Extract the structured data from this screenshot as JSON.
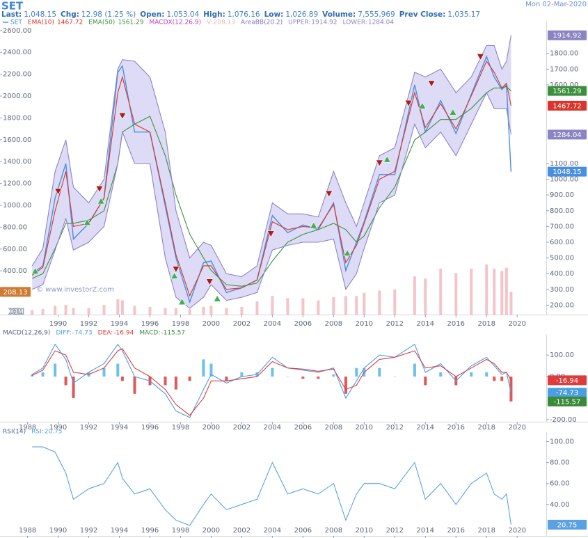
{
  "header": {
    "symbol": "SET",
    "date": "Mon 02-Mar-2020",
    "quote": [
      {
        "label": "Last:",
        "value": "1,048.15"
      },
      {
        "label": "Chg:",
        "value": "12.98 (1.25 %)"
      },
      {
        "label": "Open:",
        "value": "1,053.04"
      },
      {
        "label": "High:",
        "value": "1,076.16"
      },
      {
        "label": "Low:",
        "value": "1,026.89"
      },
      {
        "label": "Volume:",
        "value": "7,555,969"
      },
      {
        "label": "Prev Close:",
        "value": "1,035.17"
      }
    ]
  },
  "chart_data": [
    {
      "type": "line",
      "x": [
        1988.3,
        1989.0,
        1989.8,
        1990.5,
        1991.0,
        1992.0,
        1993.0,
        1993.9,
        1994.2,
        1995.0,
        1996.0,
        1997.0,
        1997.7,
        1998.6,
        1999.5,
        2000.0,
        2001.0,
        2002.0,
        2003.0,
        2004.0,
        2005.0,
        2006.0,
        2007.0,
        2008.0,
        2008.8,
        2009.5,
        2010.0,
        2011.0,
        2012.0,
        2013.3,
        2014.0,
        2015.0,
        2016.0,
        2017.0,
        2018.0,
        2018.5,
        2019.0,
        2019.3,
        2019.6
      ],
      "xlim": [
        1986.2,
        2021.9
      ],
      "xticks": [
        1990,
        1992,
        1994,
        1996,
        1998,
        2000,
        2002,
        2004,
        2006,
        2008,
        2010,
        2012,
        2014,
        2016,
        2018,
        2020
      ],
      "ylim": [
        140,
        1980
      ],
      "yticks": [
        {
          "value": 1800,
          "label": "1800.00"
        },
        {
          "value": 1700,
          "label": "1700.00"
        },
        {
          "value": 1600,
          "label": "1600.00"
        },
        {
          "value": 1100,
          "label": "1100.00"
        },
        {
          "value": 1000,
          "label": "1000.00"
        },
        {
          "value": 900,
          "label": "900.00"
        },
        {
          "value": 800,
          "label": "800.00"
        },
        {
          "value": 700,
          "label": "700.00"
        },
        {
          "value": 600,
          "label": "600.00"
        },
        {
          "value": 500,
          "label": "500.00"
        },
        {
          "value": 400,
          "label": "400.00"
        },
        {
          "value": 300,
          "label": "300.00"
        },
        {
          "value": 200,
          "label": "200.00"
        }
      ],
      "y2lim": [
        0,
        2650
      ],
      "y2ticks": [
        {
          "value": 2600,
          "label": "2600.00"
        },
        {
          "value": 2400,
          "label": "2400.00"
        },
        {
          "value": 2200,
          "label": "2200.00"
        },
        {
          "value": 2000,
          "label": "2000.00"
        },
        {
          "value": 1800,
          "label": "1800.00"
        },
        {
          "value": 1600,
          "label": "1600.00"
        },
        {
          "value": 1400,
          "label": "1400.00"
        },
        {
          "value": 1200,
          "label": "1200.00"
        },
        {
          "value": 1000,
          "label": "1000.00"
        },
        {
          "value": 800,
          "label": "800.00"
        },
        {
          "value": 600,
          "label": "600.00"
        },
        {
          "value": 400,
          "label": "400.00"
        }
      ],
      "y2_unit": "X1M",
      "watermark": "© www.investorZ.com",
      "indicator_labels": [
        {
          "text": "MACDX(12.26.9)",
          "color": "#c23bc2"
        },
        {
          "text": "AreaBB(20.2)",
          "color": "#7d74c4"
        }
      ],
      "series": [
        {
          "name": "SET",
          "color": "#4a8ee0",
          "values": [
            400,
            450,
            880,
            1100,
            620,
            720,
            880,
            1680,
            1720,
            1300,
            1300,
            830,
            500,
            220,
            470,
            480,
            280,
            310,
            360,
            770,
            660,
            710,
            680,
            850,
            420,
            600,
            730,
            1030,
            1030,
            1600,
            1300,
            1500,
            1290,
            1540,
            1780,
            1650,
            1570,
            1600,
            1048.15
          ]
        },
        {
          "name": "EMA(10)",
          "color": "#d8352c",
          "values": [
            390,
            440,
            800,
            1050,
            700,
            720,
            880,
            1550,
            1650,
            1350,
            1300,
            850,
            520,
            260,
            450,
            450,
            300,
            310,
            360,
            730,
            680,
            700,
            690,
            840,
            470,
            580,
            720,
            1000,
            1050,
            1550,
            1330,
            1480,
            1320,
            1530,
            1750,
            1680,
            1580,
            1610,
            1467.72
          ]
        },
        {
          "name": "EMA(50)",
          "color": "#3c8f3c",
          "values": [
            370,
            400,
            560,
            720,
            720,
            740,
            800,
            1100,
            1300,
            1350,
            1400,
            1150,
            900,
            650,
            500,
            420,
            330,
            320,
            340,
            480,
            600,
            650,
            680,
            720,
            680,
            600,
            640,
            820,
            950,
            1250,
            1300,
            1380,
            1380,
            1450,
            1550,
            1580,
            1580,
            1590,
            1561.29
          ]
        },
        {
          "name": "V:",
          "type": "bar",
          "axis": "y2",
          "color": "#f3c4c8",
          "label_color": "#cf7a30",
          "values": [
            40,
            50,
            80,
            90,
            60,
            60,
            90,
            140,
            130,
            80,
            70,
            60,
            60,
            50,
            70,
            80,
            60,
            70,
            120,
            170,
            150,
            150,
            130,
            160,
            170,
            170,
            200,
            220,
            230,
            350,
            330,
            420,
            380,
            420,
            460,
            420,
            400,
            430,
            208.13
          ]
        },
        {
          "name": "UPPER:",
          "color": "#8a84c4",
          "area_color": "#d2cff2",
          "values": [
            450,
            560,
            1050,
            1250,
            950,
            850,
            1000,
            1700,
            1760,
            1750,
            1650,
            1300,
            800,
            500,
            600,
            580,
            400,
            380,
            450,
            850,
            780,
            780,
            760,
            1050,
            850,
            700,
            850,
            1150,
            1200,
            1680,
            1650,
            1700,
            1550,
            1650,
            1850,
            1850,
            1700,
            1750,
            1914.92
          ]
        },
        {
          "name": "LOWER:",
          "color": "#8a84c4",
          "values": [
            300,
            330,
            550,
            750,
            550,
            600,
            700,
            1100,
            1300,
            1100,
            1100,
            500,
            250,
            180,
            250,
            330,
            230,
            250,
            280,
            550,
            580,
            600,
            600,
            620,
            300,
            400,
            560,
            850,
            900,
            1350,
            1200,
            1300,
            1150,
            1350,
            1550,
            1450,
            1450,
            1450,
            1284.04
          ]
        }
      ],
      "markers": {
        "sell": {
          "color": "#a8201c",
          "points": [
            {
              "x": 1990.0,
              "y": 920
            },
            {
              "x": 1992.7,
              "y": 935
            },
            {
              "x": 1994.2,
              "y": 1400
            },
            {
              "x": 1997.7,
              "y": 425
            },
            {
              "x": 1999.9,
              "y": 345
            },
            {
              "x": 2003.9,
              "y": 650
            },
            {
              "x": 2007.7,
              "y": 905
            },
            {
              "x": 2011.0,
              "y": 1100
            },
            {
              "x": 2012.9,
              "y": 1480
            },
            {
              "x": 2014.4,
              "y": 1605
            },
            {
              "x": 2017.6,
              "y": 1775
            }
          ]
        },
        "buy": {
          "color": "#3fae5a",
          "points": [
            {
              "x": 1988.5,
              "y": 420
            },
            {
              "x": 1991.9,
              "y": 730
            },
            {
              "x": 1992.8,
              "y": 865
            },
            {
              "x": 1997.6,
              "y": 390
            },
            {
              "x": 1998.1,
              "y": 225
            },
            {
              "x": 2000.4,
              "y": 245
            },
            {
              "x": 2006.7,
              "y": 710
            },
            {
              "x": 2008.9,
              "y": 535
            },
            {
              "x": 2011.5,
              "y": 1130
            },
            {
              "x": 2013.8,
              "y": 1470
            },
            {
              "x": 2015.8,
              "y": 1430
            }
          ]
        }
      }
    },
    {
      "type": "line",
      "title": "MACD(12,26,9)",
      "x": [
        1988.3,
        1989.0,
        1989.8,
        1990.5,
        1991.0,
        1992.0,
        1993.0,
        1993.9,
        1994.2,
        1995.0,
        1996.0,
        1997.0,
        1997.7,
        1998.6,
        1999.5,
        2000.0,
        2001.0,
        2002.0,
        2003.0,
        2004.0,
        2005.0,
        2006.0,
        2007.0,
        2008.0,
        2008.8,
        2009.5,
        2010.0,
        2011.0,
        2012.0,
        2013.3,
        2014.0,
        2015.0,
        2016.0,
        2017.0,
        2018.0,
        2018.5,
        2019.0,
        2019.3,
        2019.6
      ],
      "xlim": [
        1986.2,
        2021.9
      ],
      "xticks": [
        1988,
        1990,
        1992,
        1994,
        1996,
        1998,
        2000,
        2002,
        2004,
        2006,
        2008,
        2010,
        2012,
        2014,
        2016,
        2018,
        2020
      ],
      "ylim": [
        -210,
        175
      ],
      "yticks": [
        {
          "value": 100,
          "label": "100.00"
        },
        {
          "value": 0,
          "label": "0.00"
        },
        {
          "value": -200,
          "label": "-200.00"
        }
      ],
      "series": [
        {
          "name": "DIFF:",
          "color": "#4a9ee2",
          "values": [
            10,
            40,
            150,
            80,
            -30,
            20,
            60,
            150,
            120,
            0,
            -20,
            -80,
            -160,
            -190,
            -60,
            10,
            -30,
            0,
            10,
            90,
            40,
            30,
            20,
            40,
            -100,
            -20,
            40,
            100,
            90,
            150,
            20,
            60,
            -20,
            50,
            90,
            50,
            10,
            20,
            -74.73
          ]
        },
        {
          "name": "DEA:",
          "color": "#de3c3c",
          "values": [
            5,
            30,
            120,
            100,
            20,
            10,
            40,
            120,
            130,
            40,
            0,
            -60,
            -130,
            -180,
            -100,
            -20,
            -20,
            -10,
            0,
            70,
            40,
            35,
            25,
            35,
            -60,
            -40,
            20,
            80,
            90,
            120,
            40,
            50,
            0,
            40,
            80,
            60,
            20,
            20,
            -16.94
          ]
        },
        {
          "name": "MACD:",
          "type": "bar",
          "color": "#3a8a3a",
          "pos_color": "#6cc0ea",
          "neg_color": "#e0575a",
          "values": [
            10,
            20,
            60,
            -40,
            -100,
            20,
            40,
            60,
            -20,
            -80,
            -40,
            -40,
            -60,
            -20,
            80,
            60,
            -20,
            20,
            20,
            40,
            0,
            -10,
            -10,
            10,
            -80,
            40,
            40,
            40,
            0,
            60,
            -40,
            20,
            -40,
            20,
            20,
            -20,
            -20,
            0,
            -115.57
          ]
        }
      ]
    },
    {
      "type": "line",
      "title": "RSI(14)",
      "x": [
        1988.3,
        1989.0,
        1989.8,
        1990.5,
        1991.0,
        1992.0,
        1993.0,
        1993.9,
        1994.2,
        1995.0,
        1996.0,
        1997.0,
        1997.7,
        1998.6,
        1999.5,
        2000.0,
        2001.0,
        2002.0,
        2003.0,
        2004.0,
        2005.0,
        2006.0,
        2007.0,
        2008.0,
        2008.8,
        2009.5,
        2010.0,
        2011.0,
        2012.0,
        2013.3,
        2014.0,
        2015.0,
        2016.0,
        2017.0,
        2018.0,
        2018.5,
        2019.0,
        2019.3,
        2019.6
      ],
      "xlim": [
        1986.2,
        2021.9
      ],
      "xticks": [
        1988,
        1990,
        1992,
        1994,
        1996,
        1998,
        2000,
        2002,
        2004,
        2006,
        2008,
        2010,
        2012,
        2014,
        2016,
        2018,
        2020
      ],
      "ylim": [
        10,
        105
      ],
      "yticks": [
        {
          "value": 100,
          "label": "100.00"
        },
        {
          "value": 80,
          "label": "80.00"
        },
        {
          "value": 60,
          "label": "60.00"
        },
        {
          "value": 40,
          "label": "40.00"
        }
      ],
      "series": [
        {
          "name": "RSI:",
          "color": "#5aa2e2",
          "values": [
            95,
            95,
            90,
            70,
            45,
            55,
            60,
            80,
            65,
            50,
            55,
            35,
            25,
            20,
            40,
            50,
            35,
            40,
            45,
            80,
            50,
            55,
            50,
            60,
            25,
            50,
            60,
            60,
            55,
            80,
            45,
            60,
            40,
            60,
            70,
            50,
            45,
            50,
            20.75
          ]
        }
      ]
    }
  ]
}
